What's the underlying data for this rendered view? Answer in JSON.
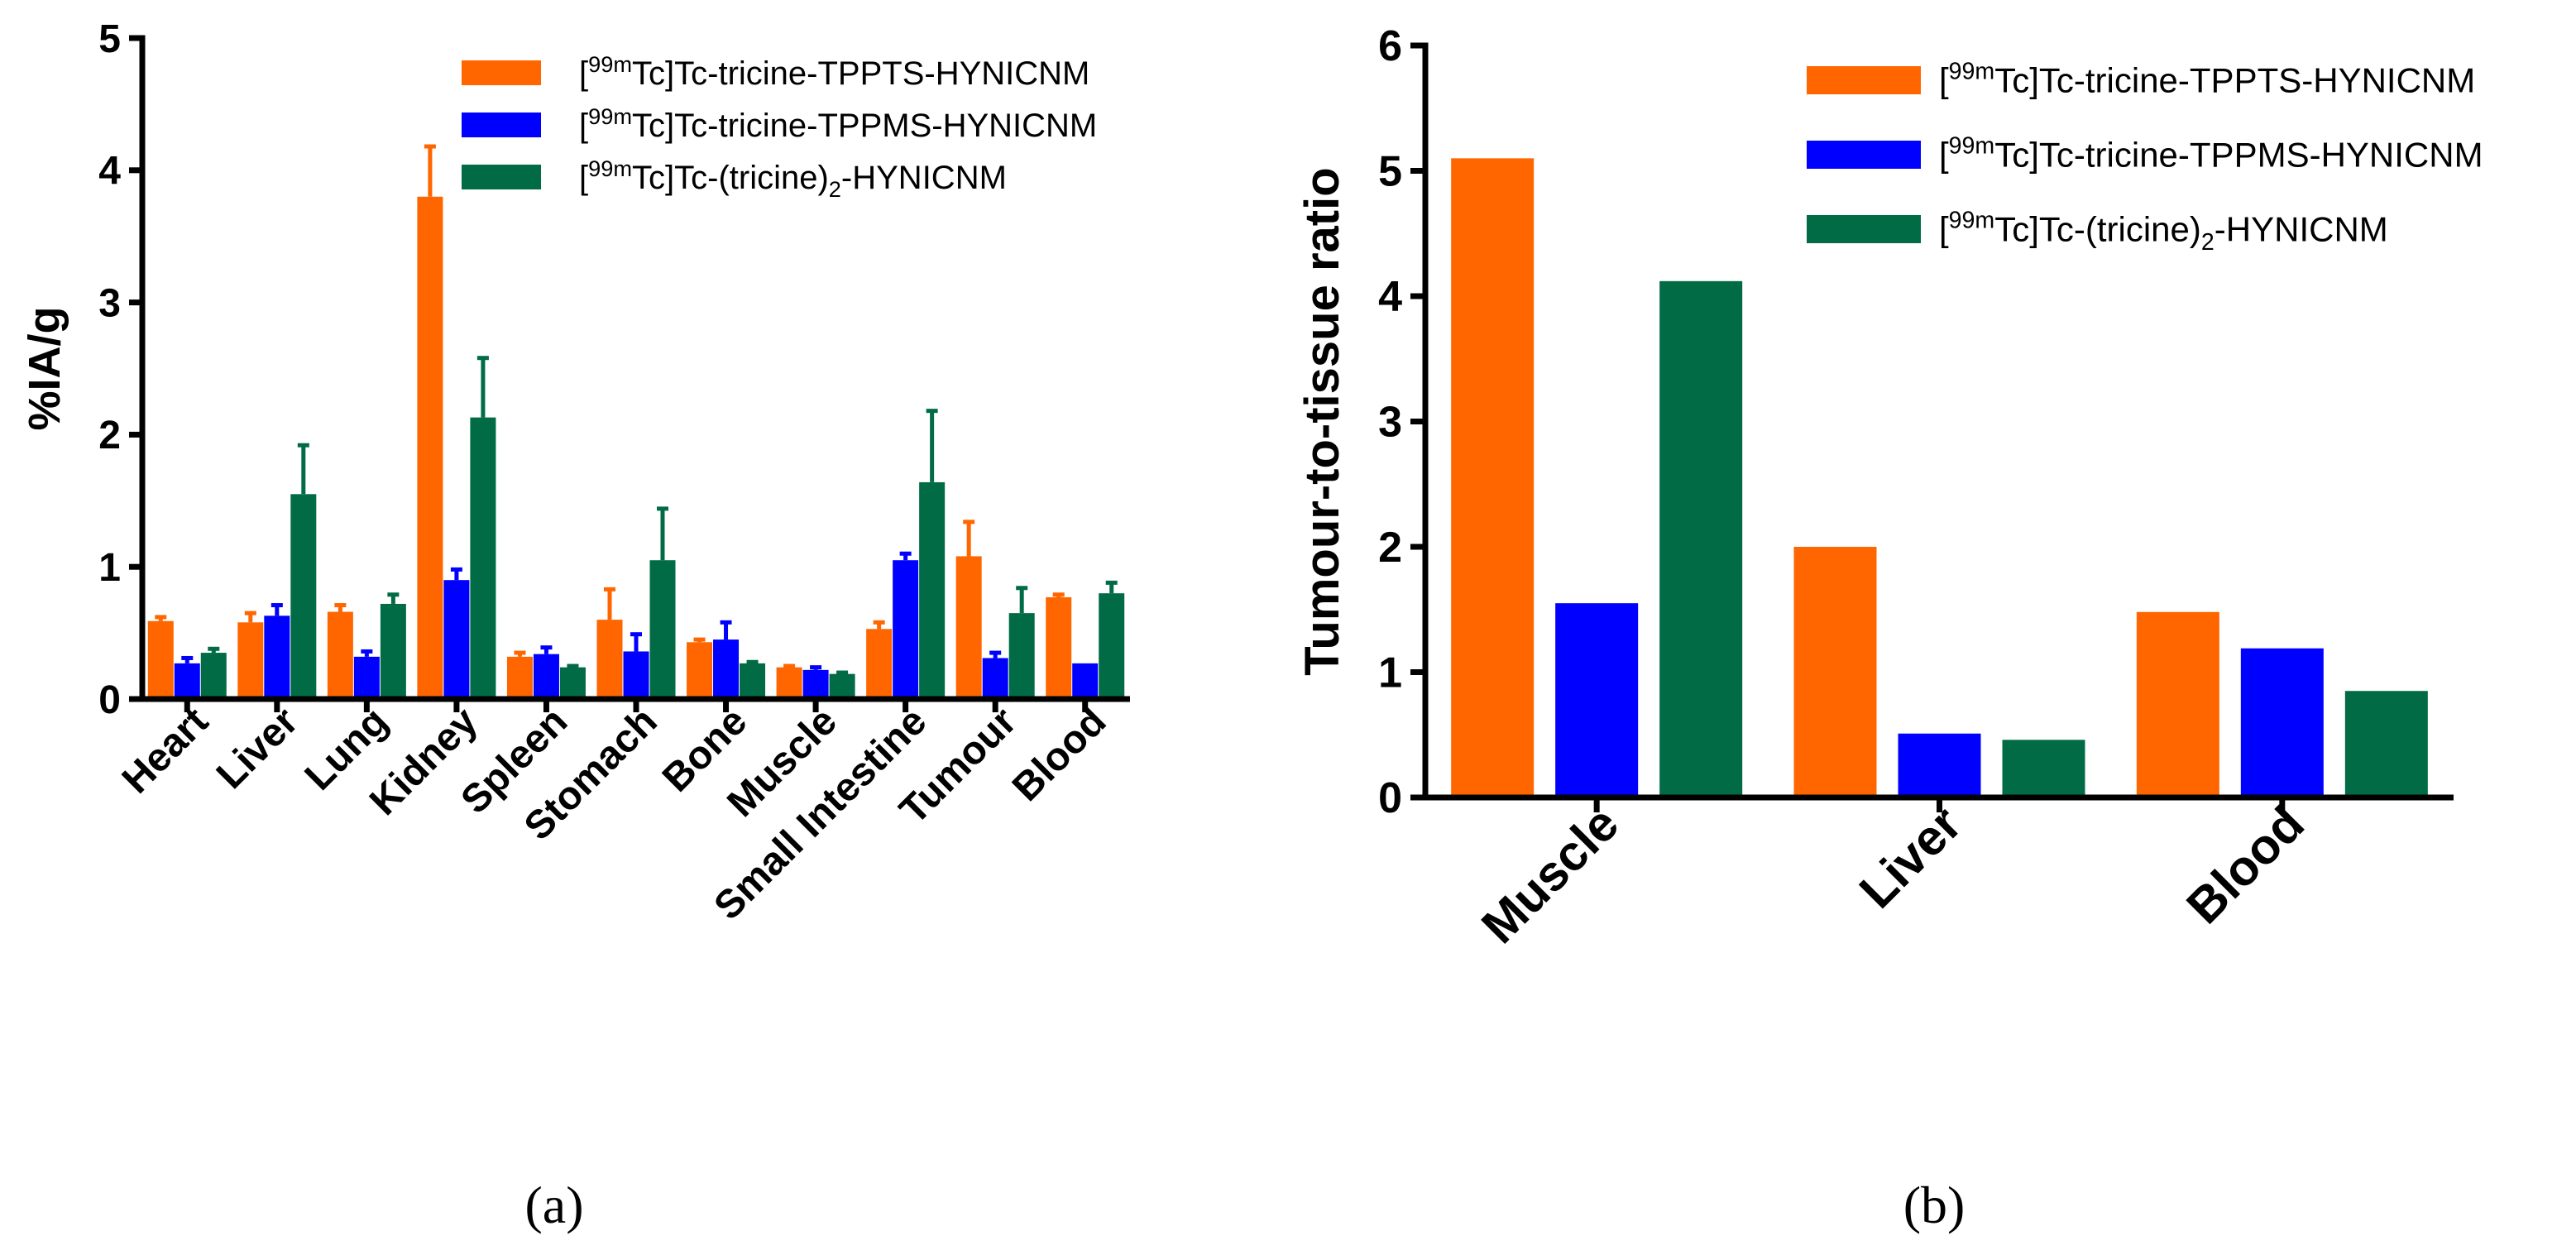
{
  "colors": {
    "tppts": "#ff6600",
    "tppms": "#0000ff",
    "tricine": "#006b45",
    "axis": "#000000"
  },
  "chart_data": [
    {
      "type": "bar",
      "panel": "(a)",
      "title": "",
      "xlabel": "",
      "ylabel": "%IA/g",
      "ylim": [
        0,
        5
      ],
      "yticks": [
        "0",
        "1",
        "2",
        "3",
        "4",
        "5"
      ],
      "legend_position": "top-right",
      "categories": [
        "Heart",
        "Liver",
        "Lung",
        "Kidney",
        "Spleen",
        "Stomach",
        "Bone",
        "Muscle",
        "Small Intestine",
        "Tumour",
        "Blood"
      ],
      "series": [
        {
          "name": "[99mTc]Tc-tricine-TPPTS-HYNICNM",
          "legend": {
            "pre": "[",
            "sup": "99m",
            "main": "Tc]Tc-tricine-TPPTS-HYNICNM",
            "sub": "",
            "post": ""
          },
          "color_key": "tppts",
          "values": [
            0.59,
            0.58,
            0.66,
            3.8,
            0.32,
            0.6,
            0.43,
            0.24,
            0.53,
            1.08,
            0.77
          ],
          "errors": [
            0.03,
            0.07,
            0.05,
            0.38,
            0.03,
            0.23,
            0.02,
            0.01,
            0.05,
            0.26,
            0.02
          ]
        },
        {
          "name": "[99mTc]Tc-tricine-TPPMS-HYNICNM",
          "legend": {
            "pre": "[",
            "sup": "99m",
            "main": "Tc]Tc-tricine-TPPMS-HYNICNM",
            "sub": "",
            "post": ""
          },
          "color_key": "tppms",
          "values": [
            0.27,
            0.63,
            0.32,
            0.9,
            0.34,
            0.36,
            0.45,
            0.22,
            1.05,
            0.31,
            0.27
          ],
          "errors": [
            0.04,
            0.08,
            0.04,
            0.08,
            0.05,
            0.13,
            0.13,
            0.02,
            0.05,
            0.04,
            0.0
          ]
        },
        {
          "name": "[99mTc]Tc-(tricine)2-HYNICNM",
          "legend": {
            "pre": "[",
            "sup": "99m",
            "main": "Tc]Tc-(tricine)",
            "sub": "2",
            "post": "-HYNICNM"
          },
          "color_key": "tricine",
          "values": [
            0.35,
            1.55,
            0.72,
            2.13,
            0.24,
            1.05,
            0.27,
            0.19,
            1.64,
            0.65,
            0.8
          ],
          "errors": [
            0.03,
            0.37,
            0.07,
            0.45,
            0.01,
            0.39,
            0.01,
            0.01,
            0.54,
            0.19,
            0.08
          ]
        }
      ]
    },
    {
      "type": "bar",
      "panel": "(b)",
      "title": "",
      "xlabel": "",
      "ylabel": "Tumour-to-tissue ratio",
      "ylim": [
        0,
        6
      ],
      "yticks": [
        "0",
        "1",
        "2",
        "3",
        "4",
        "5",
        "6"
      ],
      "legend_position": "top-right",
      "categories": [
        "Muscle",
        "Liver",
        "Blood"
      ],
      "series": [
        {
          "name": "[99mTc]Tc-tricine-TPPTS-HYNICNM",
          "legend": {
            "pre": "[",
            "sup": "99m",
            "main": "Tc]Tc-tricine-TPPTS-HYNICNM",
            "sub": "",
            "post": ""
          },
          "color_key": "tppts",
          "values": [
            5.1,
            2.0,
            1.48
          ]
        },
        {
          "name": "[99mTc]Tc-tricine-TPPMS-HYNICNM",
          "legend": {
            "pre": "[",
            "sup": "99m",
            "main": "Tc]Tc-tricine-TPPMS-HYNICNM",
            "sub": "",
            "post": ""
          },
          "color_key": "tppms",
          "values": [
            1.55,
            0.51,
            1.19
          ]
        },
        {
          "name": "[99mTc]Tc-(tricine)2-HYNICNM",
          "legend": {
            "pre": "[",
            "sup": "99m",
            "main": "Tc]Tc-(tricine)",
            "sub": "2",
            "post": "-HYNICNM"
          },
          "color_key": "tricine",
          "values": [
            4.12,
            0.46,
            0.85
          ]
        }
      ]
    }
  ]
}
